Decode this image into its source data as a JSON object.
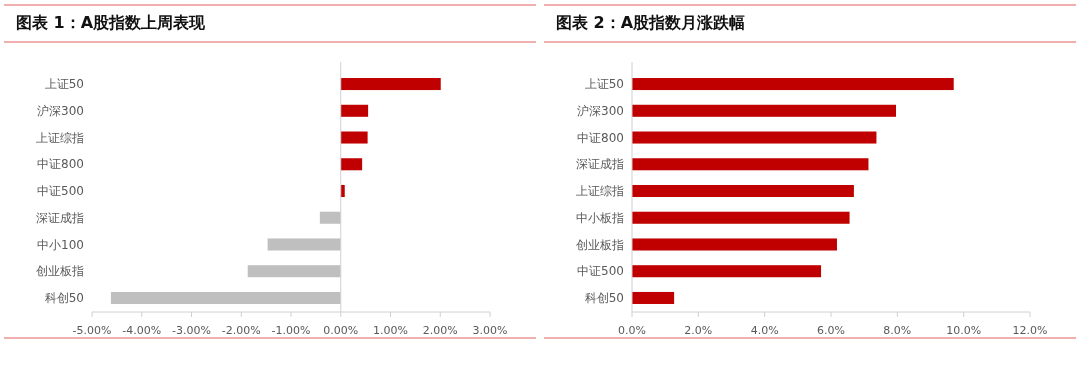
{
  "chart_data": [
    {
      "type": "bar",
      "orientation": "horizontal",
      "title": "图表 1：A股指数上周表现",
      "categories": [
        "上证50",
        "沪深300",
        "上证综指",
        "中证800",
        "中证500",
        "深证成指",
        "中小100",
        "创业板指",
        "科创50"
      ],
      "values": [
        2.01,
        0.55,
        0.54,
        0.43,
        0.08,
        -0.42,
        -1.47,
        -1.87,
        -4.62
      ],
      "colors": [
        "#c00000",
        "#c00000",
        "#c00000",
        "#c00000",
        "#c00000",
        "#bfbfbf",
        "#bfbfbf",
        "#bfbfbf",
        "#bfbfbf"
      ],
      "xlim": [
        -5,
        3
      ],
      "xticks": [
        {
          "value": -5,
          "label": "-5.00%"
        },
        {
          "value": -4,
          "label": "-4.00%"
        },
        {
          "value": -3,
          "label": "-3.00%"
        },
        {
          "value": -2,
          "label": "-2.00%"
        },
        {
          "value": -1,
          "label": "-1.00%"
        },
        {
          "value": 0,
          "label": "0.00%"
        },
        {
          "value": 1,
          "label": "1.00%"
        },
        {
          "value": 2,
          "label": "2.00%"
        },
        {
          "value": 3,
          "label": "3.00%"
        }
      ]
    },
    {
      "type": "bar",
      "orientation": "horizontal",
      "title": "图表 2：A股指数月涨跌幅",
      "categories": [
        "上证50",
        "沪深300",
        "中证800",
        "深证成指",
        "上证综指",
        "中小板指",
        "创业板指",
        "中证500",
        "科创50"
      ],
      "values": [
        9.7,
        7.96,
        7.37,
        7.13,
        6.69,
        6.56,
        6.18,
        5.7,
        1.27
      ],
      "color": "#c00000",
      "xlim": [
        0,
        12
      ],
      "xticks": [
        {
          "value": 0,
          "label": "0.0%"
        },
        {
          "value": 2,
          "label": "2.0%"
        },
        {
          "value": 4,
          "label": "4.0%"
        },
        {
          "value": 6,
          "label": "6.0%"
        },
        {
          "value": 8,
          "label": "8.0%"
        },
        {
          "value": 10,
          "label": "10.0%"
        },
        {
          "value": 12,
          "label": "12.0%"
        }
      ]
    }
  ]
}
